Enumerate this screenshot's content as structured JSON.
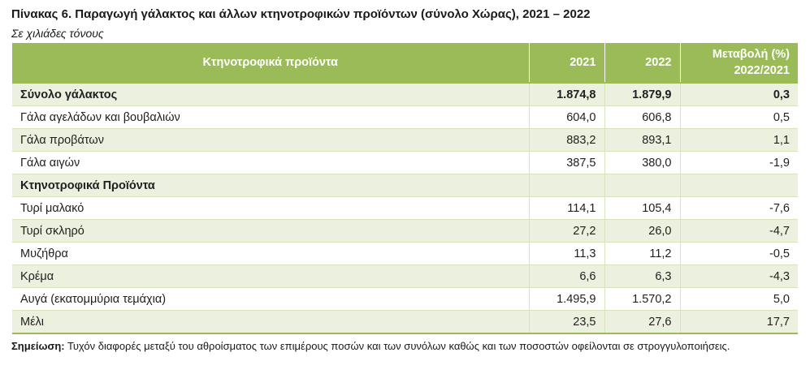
{
  "title": "Πίνακας 6. Παραγωγή γάλακτος και άλλων κτηνοτροφικών προϊόντων (σύνολο Χώρας), 2021  – 2022",
  "subtitle": "Σε χιλιάδες τόνους",
  "table": {
    "headers": {
      "product": "Κτηνοτροφικά προϊόντα",
      "y2021": "2021",
      "y2022": "2022",
      "change_line1": "Μεταβολή (%)",
      "change_line2": "2022/2021"
    },
    "rows": [
      {
        "label": "Σύνολο γάλακτος",
        "v2021": "1.874,8",
        "v2022": "1.879,9",
        "change": "0,3"
      },
      {
        "label": "Γάλα αγελάδων και βουβαλιών",
        "v2021": "604,0",
        "v2022": "606,8",
        "change": "0,5"
      },
      {
        "label": "Γάλα προβάτων",
        "v2021": "883,2",
        "v2022": "893,1",
        "change": "1,1"
      },
      {
        "label": "Γάλα αιγών",
        "v2021": "387,5",
        "v2022": "380,0",
        "change": "-1,9"
      },
      {
        "label": "Κτηνοτροφικά Προϊόντα",
        "v2021": "",
        "v2022": "",
        "change": ""
      },
      {
        "label": "Τυρί μαλακό",
        "v2021": "114,1",
        "v2022": "105,4",
        "change": "-7,6"
      },
      {
        "label": "Τυρί σκληρό",
        "v2021": "27,2",
        "v2022": "26,0",
        "change": "-4,7"
      },
      {
        "label": "Μυζήθρα",
        "v2021": "11,3",
        "v2022": "11,2",
        "change": "-0,5"
      },
      {
        "label": "Κρέμα",
        "v2021": "6,6",
        "v2022": "6,3",
        "change": "-4,3"
      },
      {
        "label": "Αυγά (εκατομμύρια τεμάχια)",
        "v2021": "1.495,9",
        "v2022": "1.570,2",
        "change": "5,0"
      },
      {
        "label": "Μέλι",
        "v2021": "23,5",
        "v2022": "27,6",
        "change": "17,7"
      }
    ]
  },
  "note": {
    "label": "Σημείωση:",
    "text": " Τυχόν διαφορές μεταξύ του αθροίσματος των επιμέρους ποσών και των συνόλων καθώς και των ποσοστών οφείλονται σε στρογγυλοποιήσεις."
  },
  "colors": {
    "header_bg": "#9bbb59",
    "row_alt_bg": "#ebf1de",
    "grid_line": "#d6e3bc"
  }
}
